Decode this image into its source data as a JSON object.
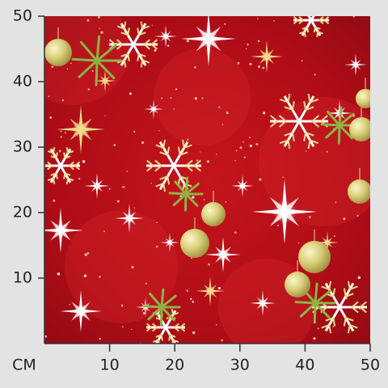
{
  "chart_data": {
    "type": "image",
    "x_label": "CM",
    "xlim": [
      0,
      50
    ],
    "ylim": [
      0,
      50
    ],
    "xticks": [
      10,
      20,
      30,
      40,
      50
    ],
    "yticks": [
      10,
      20,
      30,
      40,
      50
    ]
  }
}
